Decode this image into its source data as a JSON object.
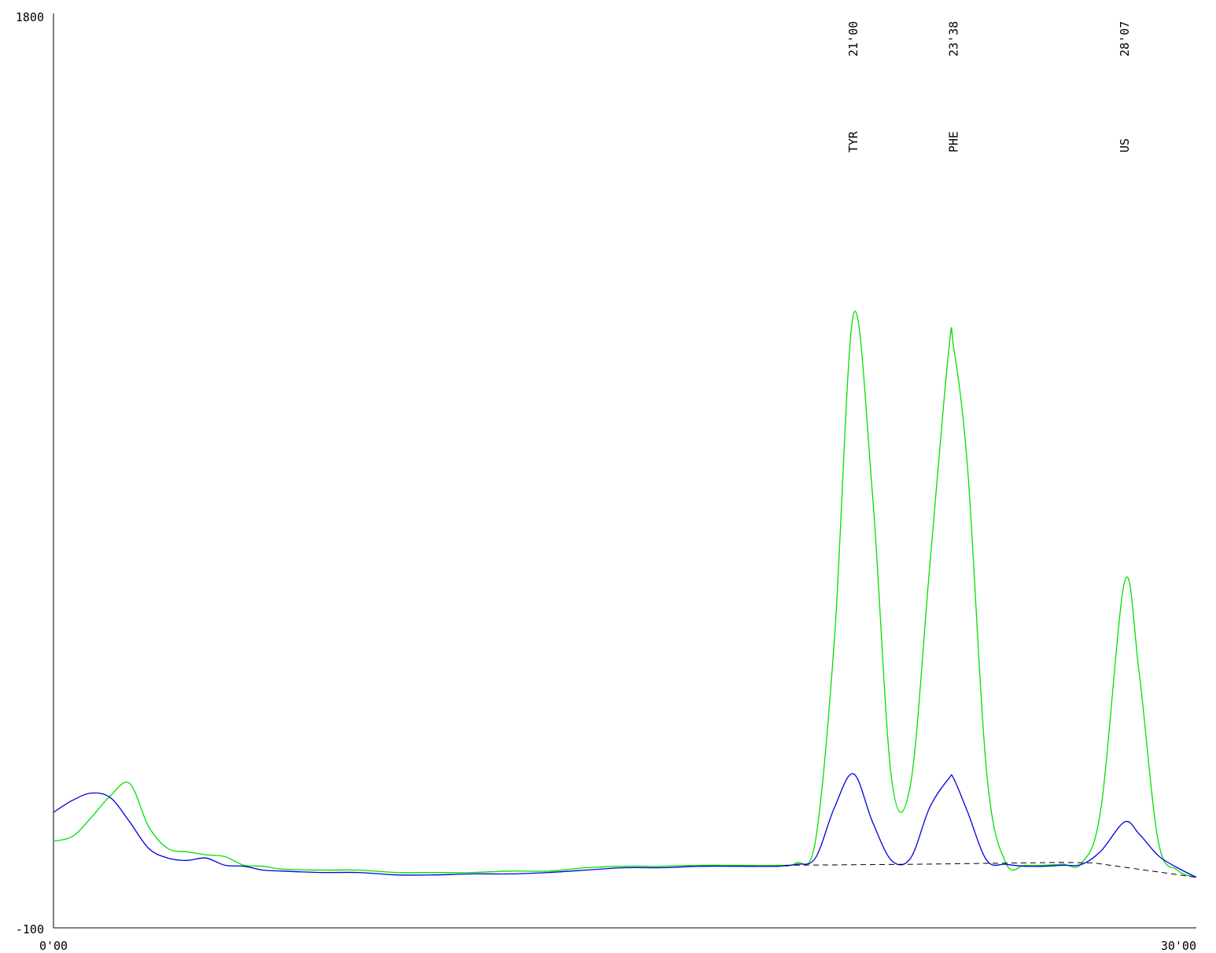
{
  "chart_data": {
    "type": "line",
    "title": "",
    "xlabel": "",
    "ylabel": "",
    "x_unit": "min",
    "xlim": [
      0,
      30
    ],
    "ylim": [
      -100,
      1800
    ],
    "x_tick_labels": [
      "0'00",
      "30'00"
    ],
    "y_tick_labels": [
      "-100",
      "1800"
    ],
    "series": [
      {
        "color": "#00e000",
        "x": [
          0,
          0.5,
          1,
          1.5,
          2,
          2.5,
          3,
          3.5,
          4,
          4.5,
          5,
          5.5,
          6,
          7,
          8,
          9,
          10,
          11,
          12,
          13,
          14,
          15,
          16,
          17,
          18,
          19,
          19.5,
          20,
          20.5,
          21,
          21.5,
          22,
          22.5,
          23,
          23.5,
          23.63,
          24,
          24.5,
          25,
          25.5,
          26,
          26.5,
          27,
          27.5,
          28.12,
          28.5,
          29,
          29.5,
          30
        ],
        "y": [
          80,
          90,
          130,
          175,
          200,
          110,
          65,
          58,
          52,
          48,
          30,
          28,
          22,
          20,
          20,
          15,
          15,
          15,
          18,
          18,
          25,
          28,
          28,
          30,
          30,
          30,
          35,
          80,
          500,
          1175,
          800,
          210,
          200,
          650,
          1100,
          1105,
          850,
          220,
          35,
          30,
          30,
          32,
          35,
          150,
          620,
          430,
          80,
          20,
          5
        ]
      },
      {
        "color": "#0000e0",
        "x": [
          0,
          0.5,
          1,
          1.5,
          2,
          2.5,
          3,
          3.5,
          4,
          4.5,
          5,
          5.5,
          6,
          7,
          8,
          9,
          10,
          11,
          12,
          13,
          14,
          15,
          16,
          17,
          18,
          19,
          19.5,
          20,
          20.5,
          21,
          21.5,
          22,
          22.5,
          23,
          23.5,
          23.63,
          24,
          24.5,
          25,
          25.5,
          26,
          26.5,
          27,
          27.5,
          28.12,
          28.5,
          29,
          29.5,
          30
        ],
        "y": [
          140,
          165,
          180,
          170,
          120,
          65,
          45,
          40,
          45,
          30,
          28,
          20,
          18,
          15,
          15,
          10,
          10,
          12,
          12,
          15,
          20,
          25,
          25,
          28,
          28,
          28,
          32,
          45,
          150,
          220,
          120,
          40,
          45,
          150,
          210,
          210,
          140,
          40,
          32,
          28,
          28,
          30,
          32,
          60,
          120,
          95,
          50,
          25,
          5
        ]
      },
      {
        "style": "dashed",
        "color": "#000000",
        "x": [
          19.2,
          22.5,
          26.5,
          27.3,
          30
        ],
        "y": [
          30,
          32,
          36,
          35,
          5
        ]
      }
    ],
    "annotations": [
      {
        "time": "21'00",
        "name": "TYR",
        "x": 21.0
      },
      {
        "time": "23'38",
        "name": "PHE",
        "x": 23.63
      },
      {
        "time": "28'07",
        "name": "US",
        "x": 28.12
      }
    ]
  }
}
